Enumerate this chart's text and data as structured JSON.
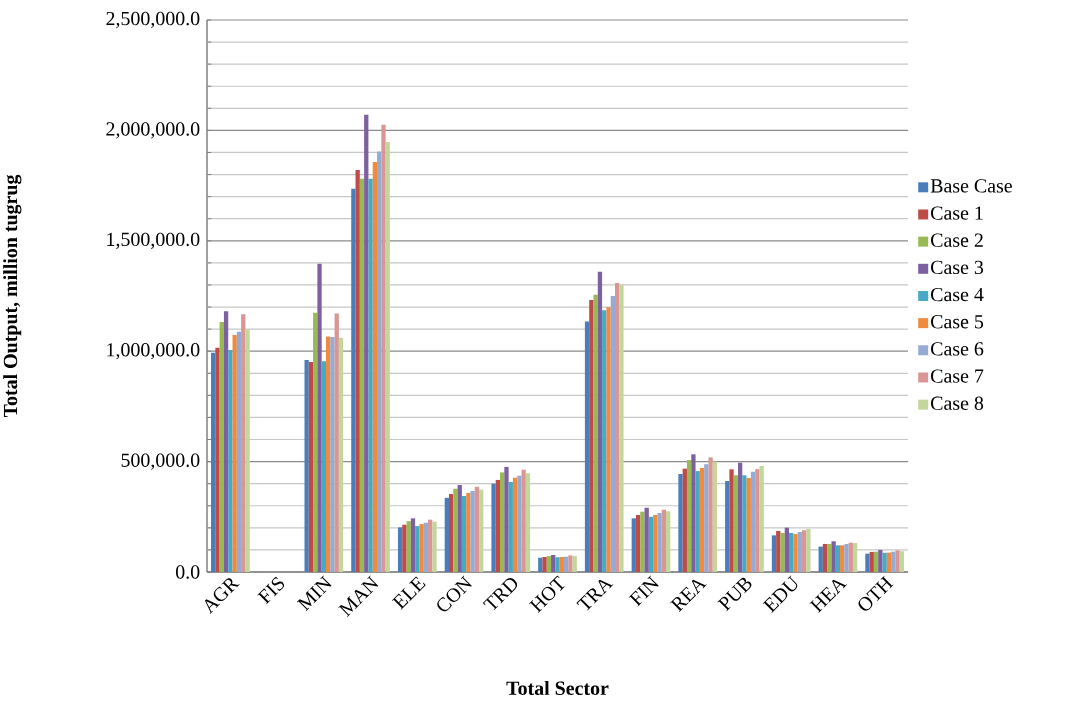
{
  "chart_data": {
    "type": "bar",
    "xlabel": "Total Sector",
    "ylabel": "Total Output, million tugrug",
    "categories": [
      "AGR",
      "FIS",
      "MIN",
      "MAN",
      "ELE",
      "CON",
      "TRD",
      "HOT",
      "TRA",
      "FIN",
      "REA",
      "PUB",
      "EDU",
      "HEA",
      "OTH"
    ],
    "series": [
      {
        "name": "Base Case",
        "color": "#4a7ebb",
        "values": [
          993000,
          0,
          960000,
          1736000,
          202000,
          336000,
          400000,
          65000,
          1135000,
          243000,
          444000,
          412000,
          166000,
          115000,
          83000
        ]
      },
      {
        "name": "Case 1",
        "color": "#be4b48",
        "values": [
          1016000,
          0,
          951000,
          1821000,
          214000,
          353000,
          417000,
          68000,
          1232000,
          258000,
          468000,
          465000,
          186000,
          127000,
          91000
        ]
      },
      {
        "name": "Case 2",
        "color": "#98b954",
        "values": [
          1132000,
          0,
          1174000,
          1781000,
          230000,
          377000,
          451000,
          72000,
          1256000,
          273000,
          507000,
          438000,
          177000,
          127000,
          92000
        ]
      },
      {
        "name": "Case  3",
        "color": "#7d60a0",
        "values": [
          1181000,
          0,
          1396000,
          2071000,
          243000,
          394000,
          476000,
          77000,
          1360000,
          291000,
          533000,
          495000,
          201000,
          139000,
          100000
        ]
      },
      {
        "name": "Case 4",
        "color": "#46aac5",
        "values": [
          1005000,
          0,
          955000,
          1781000,
          208000,
          344000,
          408000,
          67000,
          1186000,
          250000,
          457000,
          438000,
          177000,
          121000,
          87000
        ]
      },
      {
        "name": "Case 5",
        "color": "#f08a3c",
        "values": [
          1073000,
          0,
          1067000,
          1857000,
          217000,
          358000,
          427000,
          68000,
          1199000,
          258000,
          471000,
          426000,
          172000,
          121000,
          88000
        ]
      },
      {
        "name": "Case 6",
        "color": "#95abd6",
        "values": [
          1088000,
          0,
          1064000,
          1904000,
          223000,
          367000,
          436000,
          69000,
          1250000,
          267000,
          488000,
          454000,
          181000,
          127000,
          92000
        ]
      },
      {
        "name": "Case 7",
        "color": "#d99694",
        "values": [
          1167000,
          0,
          1171000,
          2026000,
          237000,
          386000,
          463000,
          75000,
          1309000,
          282000,
          519000,
          466000,
          189000,
          133000,
          98000
        ]
      },
      {
        "name": "Case 8",
        "color": "#c3d69b",
        "values": [
          1099000,
          0,
          1061000,
          1947000,
          228000,
          373000,
          447000,
          72000,
          1300000,
          275000,
          500000,
          480000,
          195000,
          131000,
          94000
        ]
      }
    ],
    "ylim": [
      0,
      2500000
    ],
    "yticks": [
      {
        "value": 0,
        "label": "0.0"
      },
      {
        "value": 100000,
        "label": null
      },
      {
        "value": 200000,
        "label": null
      },
      {
        "value": 300000,
        "label": null
      },
      {
        "value": 400000,
        "label": null
      },
      {
        "value": 500000,
        "label": "500,000.0"
      },
      {
        "value": 600000,
        "label": null
      },
      {
        "value": 700000,
        "label": null
      },
      {
        "value": 800000,
        "label": null
      },
      {
        "value": 900000,
        "label": null
      },
      {
        "value": 1000000,
        "label": "1,000,000.0"
      },
      {
        "value": 1100000,
        "label": null
      },
      {
        "value": 1200000,
        "label": null
      },
      {
        "value": 1300000,
        "label": null
      },
      {
        "value": 1400000,
        "label": null
      },
      {
        "value": 1500000,
        "label": "1,500,000.0"
      },
      {
        "value": 1600000,
        "label": null
      },
      {
        "value": 1700000,
        "label": null
      },
      {
        "value": 1800000,
        "label": null
      },
      {
        "value": 1900000,
        "label": null
      },
      {
        "value": 2000000,
        "label": "2,000,000.0"
      },
      {
        "value": 2100000,
        "label": null
      },
      {
        "value": 2200000,
        "label": null
      },
      {
        "value": 2300000,
        "label": null
      },
      {
        "value": 2400000,
        "label": null
      },
      {
        "value": 2500000,
        "label": "2,500,000.0"
      }
    ],
    "grid": "y",
    "legend": "right"
  }
}
